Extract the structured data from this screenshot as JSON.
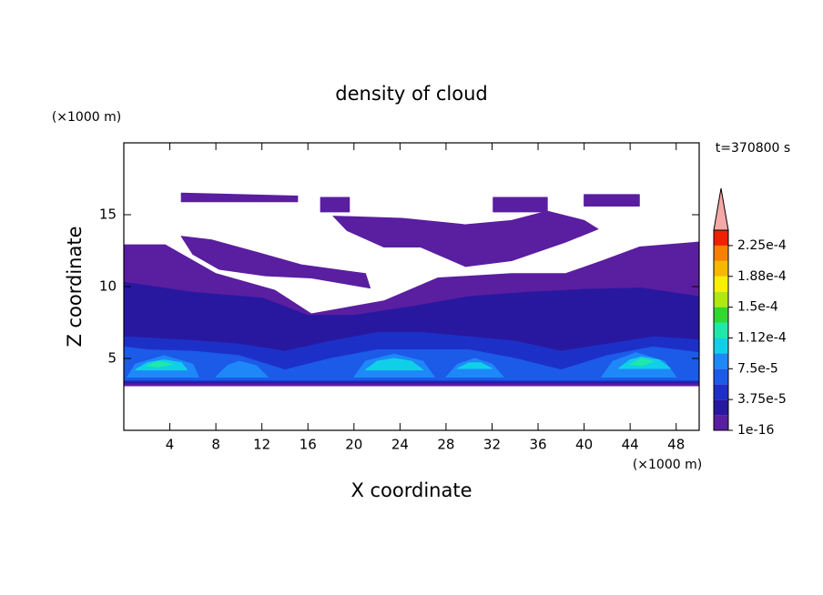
{
  "chart_data": {
    "type": "contour",
    "title": "density of cloud",
    "x_label": "X coordinate",
    "y_label": "Z coordinate",
    "x_unit": "(×1000 m)",
    "y_unit": "(×1000 m)",
    "annotation": "t=370800 s",
    "xlim": [
      0,
      50
    ],
    "ylim": [
      0,
      20
    ],
    "xticks": [
      4,
      8,
      12,
      16,
      20,
      24,
      28,
      32,
      36,
      40,
      44,
      48
    ],
    "yticks": [
      5,
      10,
      15
    ],
    "colorbar": {
      "levels": [
        1e-16,
        1.875e-05,
        3.75e-05,
        5.625e-05,
        7.5e-05,
        9.375e-05,
        0.0001125,
        0.00013125,
        0.00015,
        0.00016875,
        0.0001875,
        0.00020625,
        0.000225,
        0.00024375
      ],
      "colors": [
        "#5a1ea0",
        "#2818a0",
        "#1c30c8",
        "#1c5ae8",
        "#1e88f8",
        "#10d0e8",
        "#20e8a8",
        "#30d830",
        "#b0e810",
        "#f8f000",
        "#f8b800",
        "#f88000",
        "#f02000"
      ],
      "extend_color": "#f4a8a8",
      "ticks": [
        1e-16,
        {
          "value": 3.75e-05,
          "label": "3.75e-5"
        },
        {
          "value": 7.5e-05,
          "label": "7.5e-5"
        },
        {
          "value": 0.0001125,
          "label": "1.12e-4"
        },
        {
          "value": 0.00015,
          "label": "1.5e-4"
        },
        {
          "value": 0.0001875,
          "label": "1.88e-4"
        },
        {
          "value": 0.000225,
          "label": "2.25e-4"
        }
      ]
    },
    "regions": [
      {
        "level": 1e-16,
        "x": [
          0,
          3.6,
          8.0,
          13.1,
          16.3,
          22.6,
          27.3,
          33.7,
          38.4,
          41.6,
          44.8,
          50,
          50,
          0
        ],
        "z": [
          12.9,
          12.9,
          10.9,
          9.75,
          8.1,
          9.0,
          10.6,
          10.9,
          10.9,
          11.8,
          12.75,
          13.1,
          3.1,
          3.1
        ]
      },
      {
        "level": 1e-16,
        "x": [
          5.0,
          7.6,
          11.5,
          15.5,
          21.0,
          21.4,
          16.3,
          12.3,
          8.3,
          6.0
        ],
        "z": [
          13.5,
          13.25,
          12.4,
          11.5,
          10.9,
          9.9,
          10.6,
          10.75,
          11.2,
          12.25
        ]
      },
      {
        "level": 1e-16,
        "x": [
          18.2,
          24.2,
          29.7,
          33.7,
          36.8,
          40,
          41.2,
          38.4,
          33.7,
          29.7,
          25.8,
          22.6,
          19.4
        ],
        "z": [
          14.9,
          14.75,
          14.3,
          14.6,
          15.25,
          14.6,
          14,
          13.1,
          11.8,
          11.4,
          12.75,
          12.75,
          13.9
        ]
      },
      {
        "level": 1e-16,
        "x": [
          5.0,
          15.1,
          15.1,
          5.0
        ],
        "z": [
          16.5,
          16.3,
          15.9,
          15.9
        ]
      },
      {
        "level": 1e-16,
        "x": [
          17.1,
          19.6,
          19.6,
          17.1
        ],
        "z": [
          16.2,
          16.2,
          15.2,
          15.2
        ]
      },
      {
        "level": 1e-16,
        "x": [
          32.1,
          36.8,
          36.8,
          32.1
        ],
        "z": [
          16.2,
          16.2,
          15.2,
          15.2
        ]
      },
      {
        "level": 1e-16,
        "x": [
          40,
          44.8,
          44.8,
          40
        ],
        "z": [
          16.4,
          16.4,
          15.6,
          15.6
        ]
      },
      {
        "level": 1.875e-05,
        "x": [
          0,
          6,
          12,
          16,
          20,
          25,
          30,
          35,
          40,
          45,
          50,
          50,
          0
        ],
        "z": [
          10.3,
          9.6,
          9.2,
          8.0,
          8.0,
          8.6,
          9.3,
          9.6,
          9.8,
          9.9,
          9.3,
          3.3,
          3.3
        ]
      },
      {
        "level": 3.75e-05,
        "x": [
          0,
          5,
          10,
          14,
          18,
          22,
          26,
          30,
          34,
          38,
          42,
          46,
          50,
          50,
          0
        ],
        "z": [
          6.5,
          6.3,
          6.0,
          5.5,
          6.2,
          6.8,
          6.8,
          6.5,
          6.2,
          5.5,
          6.0,
          6.5,
          6.3,
          3.4,
          3.4
        ]
      },
      {
        "level": 5.625e-05,
        "x": [
          0,
          2,
          6,
          10,
          14,
          18,
          22,
          26,
          30,
          34,
          38,
          42,
          46,
          50,
          50,
          0
        ],
        "z": [
          5.8,
          5.6,
          5.5,
          5.2,
          4.2,
          5.0,
          5.6,
          5.6,
          5.6,
          5.0,
          4.2,
          5.2,
          5.8,
          5.4,
          3.5,
          3.5
        ]
      },
      {
        "level": 7.5e-05,
        "x": [
          0.3,
          1,
          3.5,
          6,
          6.5
        ],
        "z": [
          3.7,
          4.6,
          5.2,
          4.6,
          3.7
        ]
      },
      {
        "level": 7.5e-05,
        "x": [
          8,
          9,
          10,
          11.5,
          12.5
        ],
        "z": [
          3.7,
          4.5,
          4.8,
          4.5,
          3.7
        ]
      },
      {
        "level": 7.5e-05,
        "x": [
          20,
          21,
          23.5,
          26,
          27
        ],
        "z": [
          3.7,
          4.8,
          5.3,
          4.8,
          3.7
        ]
      },
      {
        "level": 7.5e-05,
        "x": [
          28,
          29,
          30.5,
          32,
          33
        ],
        "z": [
          3.7,
          4.6,
          5.0,
          4.6,
          3.7
        ]
      },
      {
        "level": 7.5e-05,
        "x": [
          41.5,
          42.5,
          44.5,
          47,
          48
        ],
        "z": [
          3.7,
          4.8,
          5.4,
          4.8,
          3.7
        ]
      },
      {
        "level": 9.375e-05,
        "x": [
          1,
          2,
          3.5,
          5,
          5.5
        ],
        "z": [
          4.2,
          4.7,
          4.9,
          4.7,
          4.2
        ]
      },
      {
        "level": 9.375e-05,
        "x": [
          21,
          22,
          23.5,
          25,
          26
        ],
        "z": [
          4.2,
          4.8,
          5.0,
          4.8,
          4.2
        ]
      },
      {
        "level": 9.375e-05,
        "x": [
          29,
          30,
          31,
          32
        ],
        "z": [
          4.3,
          4.7,
          4.7,
          4.3
        ]
      },
      {
        "level": 9.375e-05,
        "x": [
          43,
          44,
          45,
          46.5,
          47.5
        ],
        "z": [
          4.3,
          4.9,
          5.1,
          4.9,
          4.3
        ]
      },
      {
        "level": 0.0001125,
        "x": [
          2,
          3,
          4.2,
          3
        ],
        "z": [
          4.5,
          4.8,
          4.6,
          4.4
        ]
      },
      {
        "level": 0.0001125,
        "x": [
          44,
          45,
          46,
          45
        ],
        "z": [
          4.6,
          5.0,
          4.8,
          4.5
        ]
      }
    ]
  }
}
